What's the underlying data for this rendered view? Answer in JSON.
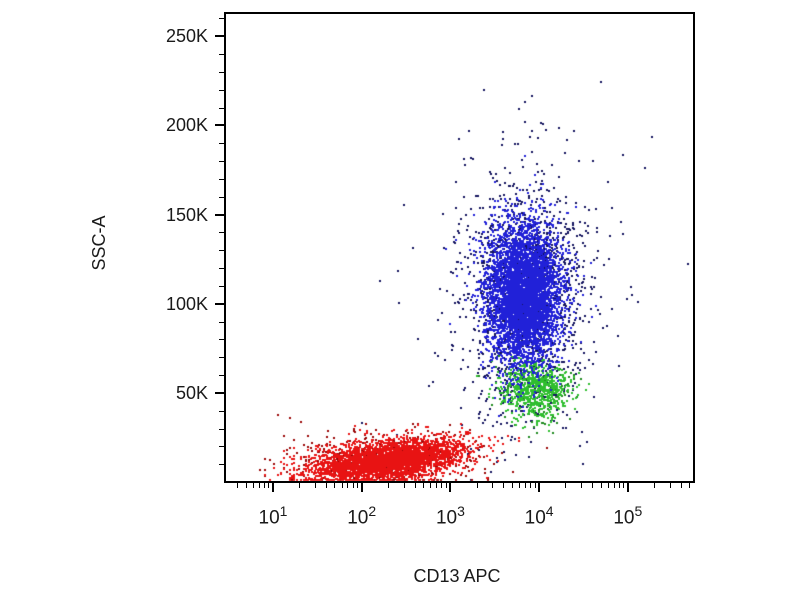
{
  "figure": {
    "kind": "flow-cytometry-dot-plot",
    "background": "#ffffff",
    "frame_color": "#000000",
    "text_color": "#1a1a1a"
  },
  "chart_data": {
    "type": "scatter",
    "title": "",
    "xlabel": "CD13 APC",
    "ylabel": "SSC-A",
    "x_scale": "log",
    "y_scale": "linear",
    "grid": false,
    "legend": "none",
    "x_tick_base": "10",
    "x_tick_exponents": [
      1,
      2,
      3,
      4,
      5
    ],
    "x_minor_multiples": [
      2,
      3,
      4,
      5,
      6,
      7,
      8,
      9
    ],
    "x_range_log": [
      0.459,
      5.746
    ],
    "y_range": [
      0,
      263000
    ],
    "y_minor_step": 10000,
    "y_ticks": [
      {
        "label": "50K",
        "value": 50000
      },
      {
        "label": "100K",
        "value": 100000
      },
      {
        "label": "150K",
        "value": 150000
      },
      {
        "label": "200K",
        "value": 200000
      },
      {
        "label": "250K",
        "value": 250000
      }
    ],
    "seed": 1337,
    "point_size": 2,
    "populations": [
      {
        "name": "cd13-high-wide-outliers-navy",
        "color": "#14145f",
        "count": 130,
        "center_log_x": 3.85,
        "sigma_log_x": 0.78,
        "center_y": 95000,
        "sigma_y": 60000
      },
      {
        "name": "granulocyte-halo-navy",
        "color": "#14145f",
        "count": 1300,
        "center_log_x": 3.82,
        "sigma_log_x": 0.34,
        "center_y": 104000,
        "sigma_y": 34000
      },
      {
        "name": "monocyte-green-dark",
        "color": "#1f8a1f",
        "count": 130,
        "center_log_x": 3.95,
        "sigma_log_x": 0.24,
        "center_y": 52000,
        "sigma_y": 10000
      },
      {
        "name": "monocyte-green-core",
        "color": "#2fbe2f",
        "count": 700,
        "center_log_x": 3.95,
        "sigma_log_x": 0.2,
        "center_y": 52000,
        "sigma_y": 7500
      },
      {
        "name": "granulocyte-core-blue",
        "color": "#2121d8",
        "count": 5200,
        "center_log_x": 3.82,
        "sigma_log_x": 0.21,
        "center_y": 106000,
        "sigma_y": 19000
      },
      {
        "name": "cd13-negative-dark-red-outliers",
        "color": "#9a0707",
        "count": 430,
        "center_log_x": 2.25,
        "sigma_log_x": 0.55,
        "center_y": 14000,
        "sigma_y": 8500,
        "quantize_below": 60,
        "clamp_bottom": true
      },
      {
        "name": "cd13-negative-core-red",
        "color": "#e81313",
        "count": 3600,
        "center_log_x": 2.28,
        "sigma_log_x": 0.42,
        "center_y": 12500,
        "sigma_y": 5200,
        "y_per_logx": 6000,
        "quantize_below": 60,
        "clamp_bottom": true
      }
    ]
  }
}
